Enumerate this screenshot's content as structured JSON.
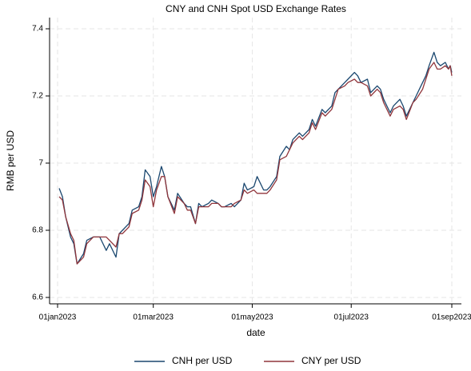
{
  "chart_data": {
    "type": "line",
    "title": "CNY and CNH Spot USD Exchange Rates",
    "xlabel": "date",
    "ylabel": "RMB per USD",
    "x": [
      "2023-01-02",
      "2023-01-04",
      "2023-01-06",
      "2023-01-09",
      "2023-01-11",
      "2023-01-13",
      "2023-01-17",
      "2023-01-19",
      "2023-01-23",
      "2023-01-27",
      "2023-01-31",
      "2023-02-02",
      "2023-02-06",
      "2023-02-08",
      "2023-02-10",
      "2023-02-14",
      "2023-02-16",
      "2023-02-20",
      "2023-02-22",
      "2023-02-24",
      "2023-02-27",
      "2023-03-01",
      "2023-03-03",
      "2023-03-06",
      "2023-03-08",
      "2023-03-10",
      "2023-03-14",
      "2023-03-16",
      "2023-03-20",
      "2023-03-22",
      "2023-03-24",
      "2023-03-27",
      "2023-03-29",
      "2023-03-31",
      "2023-04-04",
      "2023-04-06",
      "2023-04-10",
      "2023-04-12",
      "2023-04-14",
      "2023-04-18",
      "2023-04-20",
      "2023-04-24",
      "2023-04-26",
      "2023-04-28",
      "2023-05-02",
      "2023-05-04",
      "2023-05-08",
      "2023-05-10",
      "2023-05-12",
      "2023-05-16",
      "2023-05-18",
      "2023-05-22",
      "2023-05-24",
      "2023-05-26",
      "2023-05-30",
      "2023-06-01",
      "2023-06-05",
      "2023-06-07",
      "2023-06-09",
      "2023-06-13",
      "2023-06-15",
      "2023-06-19",
      "2023-06-21",
      "2023-06-23",
      "2023-06-27",
      "2023-06-29",
      "2023-07-03",
      "2023-07-05",
      "2023-07-07",
      "2023-07-11",
      "2023-07-13",
      "2023-07-17",
      "2023-07-19",
      "2023-07-21",
      "2023-07-25",
      "2023-07-27",
      "2023-07-31",
      "2023-08-02",
      "2023-08-04",
      "2023-08-08",
      "2023-08-10",
      "2023-08-14",
      "2023-08-16",
      "2023-08-18",
      "2023-08-21",
      "2023-08-23",
      "2023-08-25",
      "2023-08-28",
      "2023-08-30",
      "2023-08-31",
      "2023-09-01"
    ],
    "series": [
      {
        "name": "CNH per USD",
        "color": "#1a476f",
        "values": [
          6.925,
          6.9,
          6.84,
          6.78,
          6.76,
          6.7,
          6.73,
          6.77,
          6.78,
          6.78,
          6.74,
          6.76,
          6.72,
          6.79,
          6.8,
          6.82,
          6.86,
          6.87,
          6.9,
          6.98,
          6.96,
          6.9,
          6.93,
          6.99,
          6.96,
          6.9,
          6.86,
          6.91,
          6.88,
          6.87,
          6.87,
          6.82,
          6.88,
          6.87,
          6.88,
          6.89,
          6.88,
          6.87,
          6.87,
          6.88,
          6.87,
          6.89,
          6.94,
          6.92,
          6.93,
          6.96,
          6.92,
          6.92,
          6.93,
          6.96,
          7.02,
          7.05,
          7.04,
          7.07,
          7.09,
          7.08,
          7.1,
          7.13,
          7.11,
          7.16,
          7.15,
          7.17,
          7.21,
          7.22,
          7.24,
          7.25,
          7.27,
          7.26,
          7.24,
          7.25,
          7.21,
          7.23,
          7.22,
          7.19,
          7.15,
          7.17,
          7.19,
          7.17,
          7.14,
          7.18,
          7.2,
          7.24,
          7.26,
          7.29,
          7.33,
          7.3,
          7.29,
          7.3,
          7.28,
          7.29,
          7.27
        ]
      },
      {
        "name": "CNY per USD",
        "color": "#90353b",
        "values": [
          6.9,
          6.89,
          6.84,
          6.79,
          6.77,
          6.7,
          6.72,
          6.76,
          6.78,
          6.78,
          6.78,
          6.77,
          6.75,
          6.79,
          6.79,
          6.81,
          6.85,
          6.86,
          6.89,
          6.95,
          6.93,
          6.87,
          6.92,
          6.96,
          6.96,
          6.9,
          6.85,
          6.9,
          6.88,
          6.86,
          6.86,
          6.82,
          6.87,
          6.87,
          6.87,
          6.88,
          6.88,
          6.87,
          6.87,
          6.87,
          6.88,
          6.89,
          6.92,
          6.91,
          6.92,
          6.91,
          6.91,
          6.91,
          6.92,
          6.95,
          7.01,
          7.02,
          7.04,
          7.06,
          7.08,
          7.07,
          7.09,
          7.12,
          7.1,
          7.15,
          7.14,
          7.16,
          7.19,
          7.22,
          7.23,
          7.24,
          7.25,
          7.24,
          7.24,
          7.23,
          7.2,
          7.22,
          7.21,
          7.18,
          7.14,
          7.16,
          7.17,
          7.16,
          7.13,
          7.18,
          7.19,
          7.22,
          7.25,
          7.28,
          7.3,
          7.28,
          7.28,
          7.29,
          7.28,
          7.29,
          7.26
        ]
      }
    ],
    "xlim": [
      "2023-01-01",
      "2023-09-01"
    ],
    "xticks": [
      {
        "value": "2023-01-01",
        "label": "01jan2023"
      },
      {
        "value": "2023-03-01",
        "label": "01mar2023"
      },
      {
        "value": "2023-05-01",
        "label": "01may2023"
      },
      {
        "value": "2023-07-01",
        "label": "01jul2023"
      },
      {
        "value": "2023-09-01",
        "label": "01sep2023"
      }
    ],
    "ylim": [
      6.6,
      7.4
    ],
    "yticks": [
      6.6,
      6.8,
      7,
      7.2,
      7.4
    ],
    "grid": true,
    "legend": "bottom"
  }
}
